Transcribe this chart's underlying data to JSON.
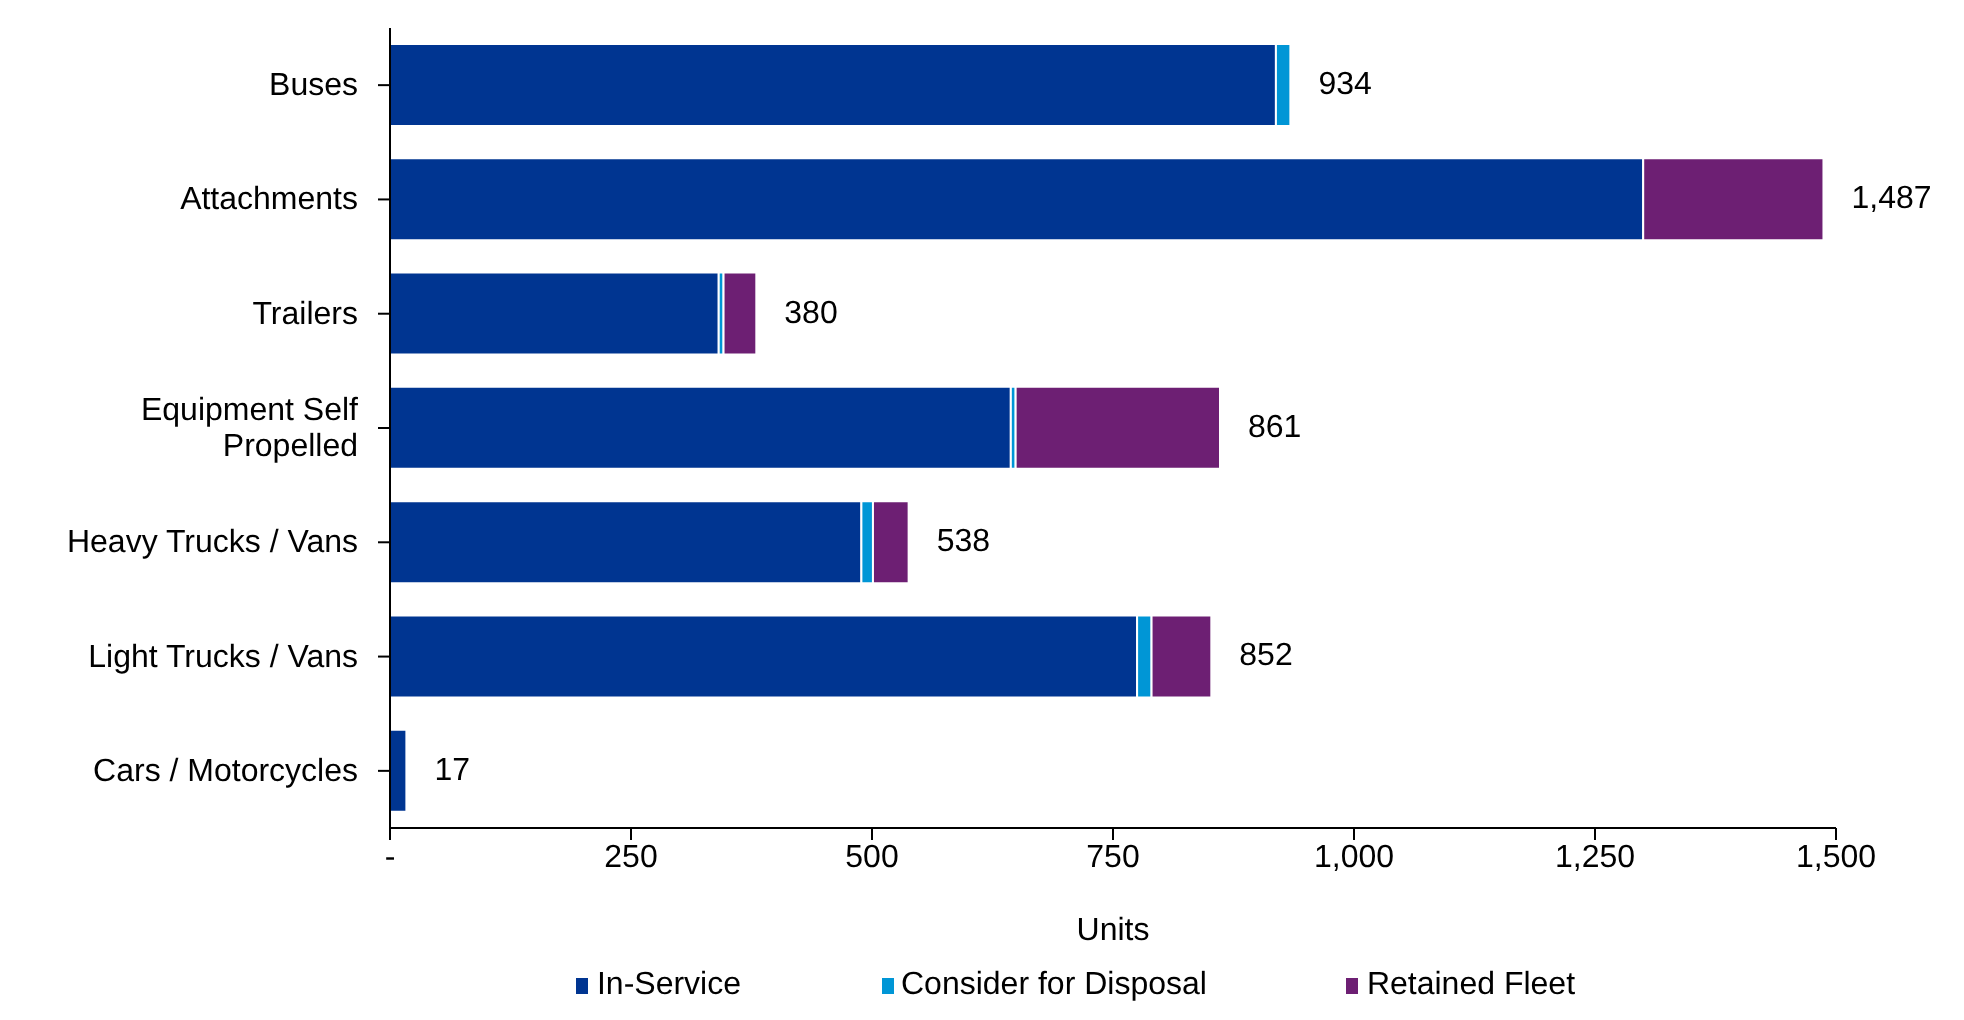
{
  "chart_data": {
    "type": "bar",
    "orientation": "horizontal",
    "stacked": true,
    "categories": [
      "Buses",
      "Attachments",
      "Trailers",
      "Equipment Self Propelled",
      "Heavy Trucks / Vans",
      "Light Trucks / Vans",
      "Cars / Motorcycles"
    ],
    "series": [
      {
        "name": "In-Service",
        "color": "#003591",
        "values": [
          919,
          1300,
          341,
          644,
          489,
          775,
          17
        ]
      },
      {
        "name": "Consider for Disposal",
        "color": "#0096d6",
        "values": [
          15,
          0,
          5,
          5,
          12,
          15,
          0
        ]
      },
      {
        "name": "Retained Fleet",
        "color": "#6d1f73",
        "values": [
          0,
          187,
          34,
          212,
          37,
          62,
          0
        ]
      }
    ],
    "totals": [
      "934",
      "1,487",
      "380",
      "861",
      "538",
      "852",
      "17"
    ],
    "xlabel": "Units",
    "xlim": [
      0,
      1500
    ],
    "xticks": [
      {
        "value": 0,
        "label": "-"
      },
      250,
      500,
      750,
      {
        "value": 1000,
        "label": "1,000"
      },
      {
        "value": 1250,
        "label": "1,250"
      },
      {
        "value": 1500,
        "label": "1,500"
      }
    ],
    "grid": false,
    "legend": "bottom"
  }
}
